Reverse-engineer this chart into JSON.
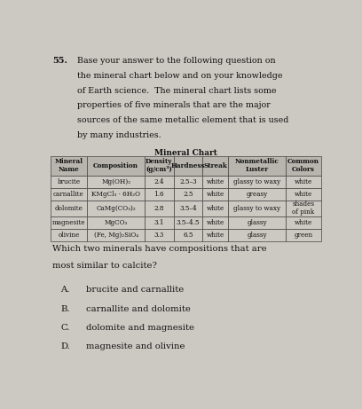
{
  "question_number": "55.",
  "intro_text": "Base your answer to the following question on\nthe mineral chart below and on your knowledge\nof Earth science.  The mineral chart lists some\nproperties of five minerals that are the major\nsources of the same metallic element that is used\nby many industries.",
  "table_title": "Mineral Chart",
  "col_headers": [
    "Mineral\nName",
    "Composition",
    "Density\n(g/cm³)",
    "Hardness",
    "Streak",
    "Nonmetallic\nLuster",
    "Common\nColors"
  ],
  "rows": [
    [
      "brucite",
      "Mg(OH)₂",
      "2.4",
      "2.5–3",
      "white",
      "glassy to waxy",
      "white"
    ],
    [
      "carnallite",
      "KMgCl₃ · 6H₂O",
      "1.6",
      "2.5",
      "white",
      "greasy",
      "white"
    ],
    [
      "dolomite",
      "CaMg(CO₃)₂",
      "2.8",
      "3.5–4",
      "white",
      "glassy to waxy",
      "shades\nof pink"
    ],
    [
      "magnesite",
      "MgCO₃",
      "3.1",
      "3.5–4.5",
      "white",
      "glassy",
      "white"
    ],
    [
      "olivine",
      "(Fe, Mg)₂SiO₄",
      "3.3",
      "6.5",
      "white",
      "glassy",
      "green"
    ]
  ],
  "question": "Which two minerals have compositions that are\nmost similar to calcite?",
  "choices": [
    [
      "A.",
      "brucite and carnallite"
    ],
    [
      "B.",
      "carnallite and dolomite"
    ],
    [
      "C.",
      "dolomite and magnesite"
    ],
    [
      "D.",
      "magnesite and olivine"
    ]
  ],
  "bg_color": "#ccc9c2",
  "text_color": "#111111",
  "cell_bg": "#ccc9c2",
  "header_bg": "#b8b5ae",
  "border_color": "#444444"
}
